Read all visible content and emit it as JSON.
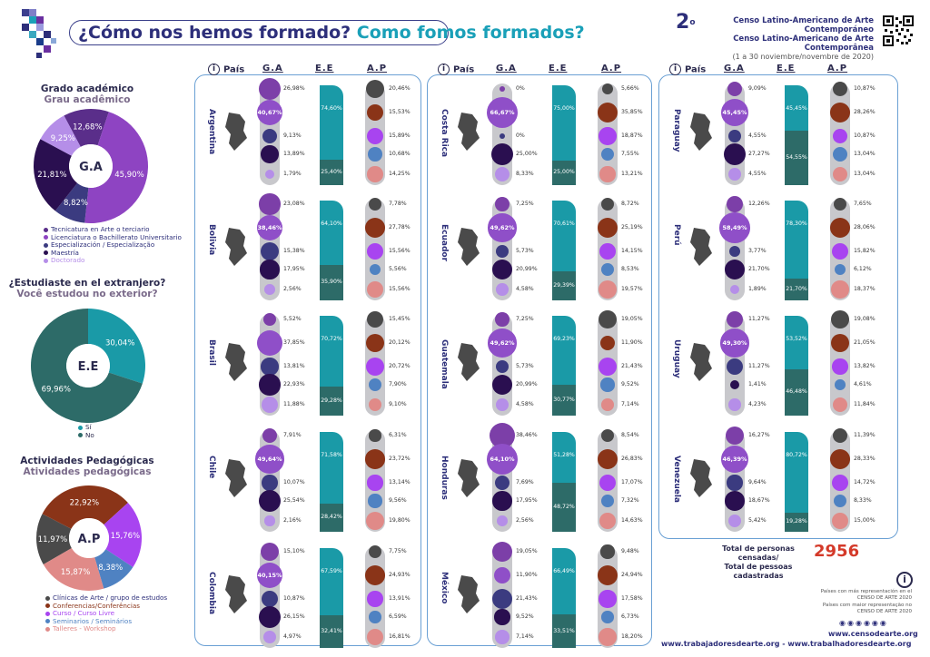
{
  "header": {
    "title_es": "¿Cómo nos hemos formado?",
    "title_pt": "Como fomos formados?",
    "census_number": "2",
    "census_sup": "o",
    "census_es": "Censo Latino-Americano de Arte Contemporáneo",
    "census_pt": "Censo Latino-Americano de Arte Contemporânea",
    "census_dates": "(1 a 30 noviembre/novembre de 2020)"
  },
  "colors": {
    "ga": [
      "#7c3fa8",
      "#8f4fc8",
      "#3b3b80",
      "#2a0f50",
      "#b58ee8"
    ],
    "ap": [
      "#4a4a4a",
      "#8a3418",
      "#a844f0",
      "#4f82c2",
      "#e08a88"
    ],
    "ee_top": "#1a9aa7",
    "ee_bottom": "#2d6b68"
  },
  "side": {
    "ga_title_es": "Grado académico",
    "ga_title_pt": "Grau acadêmico",
    "ga_center": "G.A",
    "ee_title_es": "¿Estudiaste en el extranjero?",
    "ee_title_pt": "Você estudou no exterior?",
    "ee_center": "E.E",
    "ap_title_es": "Actividades Pedagógicas",
    "ap_title_pt": "Atividades pedagógicas",
    "ap_center": "A.P",
    "ga_legend": [
      "Tecnicatura en Arte o terciario",
      "Licenciatura o Bachillerato Universitario",
      "Especialización / Especialização",
      "Maestría",
      "Doctorado"
    ],
    "ee_legend": [
      "Sí",
      "No"
    ],
    "ap_legend": [
      "Clínicas de Arte / grupo de estudos",
      "Conferencias/Conferências",
      "Curso / Curso Livre",
      "Seminarios / Seminários",
      "Talleres - Workshop"
    ]
  },
  "column_headers": {
    "pais": "País",
    "ga": "G.A",
    "ee": "E.E",
    "ap": "A.P"
  },
  "footer": {
    "total_es": "Total de personas censadas/",
    "total_pt": "Total de pessoas cadastradas",
    "total_value": "2956",
    "note_1": "Países con más representación en el CENSO DE ARTE 2020",
    "note_2": "Países com maior representação no CENSO DE ARTE 2020",
    "site_1": "www.censodearte.org",
    "site_2": "www.trabajadoresdearte.org - www.trabalhadoresdearte.org"
  },
  "chart_data": [
    {
      "type": "pie",
      "title": "Grado académico / Grau acadêmico",
      "categories": [
        "Tecnicatura en Arte o terciario",
        "Licenciatura o Bachillerato Universitario",
        "Especialización / Especialização",
        "Maestría",
        "Doctorado"
      ],
      "values": [
        12.68,
        45.9,
        8.82,
        21.81,
        9.25
      ],
      "labels": [
        "12,68%",
        "45,90%",
        "8,82%",
        "21,81%",
        "9,25%"
      ]
    },
    {
      "type": "pie",
      "title": "¿Estudiaste en el extranjero? / Você estudou no exterior?",
      "categories": [
        "Sí",
        "No"
      ],
      "values": [
        30.04,
        69.96
      ],
      "labels": [
        "30,04%",
        "69,96%"
      ]
    },
    {
      "type": "pie",
      "title": "Actividades Pedagógicas / Atividades pedagógicas",
      "categories": [
        "Clínicas de Arte / grupo de estudos",
        "Conferencias/Conferências",
        "Curso / Curso Livre",
        "Seminarios / Seminários",
        "Talleres - Workshop"
      ],
      "values": [
        11.97,
        22.92,
        15.76,
        8.38,
        15.87
      ],
      "labels": [
        "11,97%",
        "22,92%",
        "15,76%",
        "8,38%",
        "15,87%"
      ]
    },
    {
      "type": "table",
      "title": "Países",
      "countries": [
        {
          "name": "Argentina",
          "ga": [
            "26,98%",
            "40,67%",
            "9,13%",
            "13,89%",
            "1,79%"
          ],
          "ee": [
            "74,60%",
            "25,40%"
          ],
          "ap": [
            "20,46%",
            "15,53%",
            "15,89%",
            "10,68%",
            "14,25%"
          ]
        },
        {
          "name": "Bolivia",
          "ga": [
            "23,08%",
            "38,46%",
            "15,38%",
            "17,95%",
            "2,56%"
          ],
          "ee": [
            "64,10%",
            "35,90%"
          ],
          "ap": [
            "7,78%",
            "27,78%",
            "15,56%",
            "5,56%",
            "15,56%"
          ]
        },
        {
          "name": "Brasil",
          "ga": [
            "5,52%",
            "37,85%",
            "13,81%",
            "22,93%",
            "11,88%"
          ],
          "ee": [
            "70,72%",
            "29,28%"
          ],
          "ap": [
            "15,45%",
            "20,12%",
            "20,72%",
            "7,90%",
            "9,10%"
          ]
        },
        {
          "name": "Chile",
          "ga": [
            "7,91%",
            "49,64%",
            "10,07%",
            "25,54%",
            "2,16%"
          ],
          "ee": [
            "71,58%",
            "28,42%"
          ],
          "ap": [
            "6,31%",
            "23,72%",
            "13,14%",
            "9,56%",
            "19,80%"
          ]
        },
        {
          "name": "Colombia",
          "ga": [
            "15,10%",
            "40,15%",
            "10,87%",
            "26,15%",
            "4,97%"
          ],
          "ee": [
            "67,59%",
            "32,41%"
          ],
          "ap": [
            "7,75%",
            "24,93%",
            "13,91%",
            "6,59%",
            "16,81%"
          ]
        },
        {
          "name": "Costa Rica",
          "ga": [
            "0%",
            "66,67%",
            "0%",
            "25,00%",
            "8,33%"
          ],
          "ee": [
            "75,00%",
            "25,00%"
          ],
          "ap": [
            "5,66%",
            "35,85%",
            "18,87%",
            "7,55%",
            "13,21%"
          ]
        },
        {
          "name": "Ecuador",
          "ga": [
            "7,25%",
            "49,62%",
            "5,73%",
            "20,99%",
            "4,58%"
          ],
          "ee": [
            "70,61%",
            "29,39%"
          ],
          "ap": [
            "8,72%",
            "25,19%",
            "14,15%",
            "8,53%",
            "19,57%"
          ]
        },
        {
          "name": "Guatemala",
          "ga": [
            "7,25%",
            "49,62%",
            "5,73%",
            "20,99%",
            "4,58%"
          ],
          "ee": [
            "69,23%",
            "30,77%"
          ],
          "ap": [
            "19,05%",
            "11,90%",
            "21,43%",
            "9,52%",
            "7,14%"
          ]
        },
        {
          "name": "Honduras",
          "ga": [
            "38,46%",
            "64,10%",
            "7,69%",
            "17,95%",
            "2,56%"
          ],
          "ee": [
            "51,28%",
            "48,72%"
          ],
          "ap": [
            "8,54%",
            "26,83%",
            "17,07%",
            "7,32%",
            "14,63%"
          ]
        },
        {
          "name": "México",
          "ga": [
            "19,05%",
            "11,90%",
            "21,43%",
            "9,52%",
            "7,14%"
          ],
          "ee": [
            "66,49%",
            "33,51%"
          ],
          "ap": [
            "9,48%",
            "24,94%",
            "17,58%",
            "6,73%",
            "18,20%"
          ]
        },
        {
          "name": "Paraguay",
          "ga": [
            "9,09%",
            "45,45%",
            "4,55%",
            "27,27%",
            "4,55%"
          ],
          "ee": [
            "45,45%",
            "54,55%"
          ],
          "ap": [
            "10,87%",
            "28,26%",
            "10,87%",
            "13,04%",
            "13,04%"
          ]
        },
        {
          "name": "Perú",
          "ga": [
            "12,26%",
            "58,49%",
            "3,77%",
            "21,70%",
            "1,89%"
          ],
          "ee": [
            "78,30%",
            "21,70%"
          ],
          "ap": [
            "7,65%",
            "28,06%",
            "15,82%",
            "6,12%",
            "18,37%"
          ]
        },
        {
          "name": "Uruguay",
          "ga": [
            "11,27%",
            "49,30%",
            "11,27%",
            "1,41%",
            "4,23%"
          ],
          "ee": [
            "53,52%",
            "46,48%"
          ],
          "ap": [
            "19,08%",
            "21,05%",
            "13,82%",
            "4,61%",
            "11,84%"
          ]
        },
        {
          "name": "Venezuela",
          "ga": [
            "16,27%",
            "46,39%",
            "9,64%",
            "18,67%",
            "5,42%"
          ],
          "ee": [
            "80,72%",
            "19,28%"
          ],
          "ap": [
            "11,39%",
            "28,33%",
            "14,72%",
            "8,33%",
            "15,00%"
          ]
        }
      ]
    }
  ]
}
